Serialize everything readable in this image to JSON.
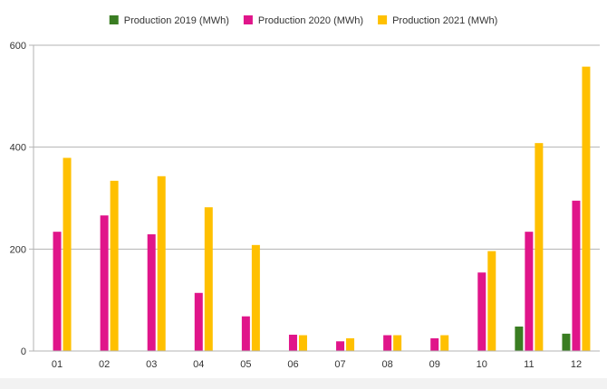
{
  "chart_data": {
    "type": "bar",
    "title": "",
    "xlabel": "",
    "ylabel": "",
    "categories": [
      "01",
      "02",
      "03",
      "04",
      "05",
      "06",
      "07",
      "08",
      "09",
      "10",
      "11",
      "12"
    ],
    "series": [
      {
        "name": "Production 2019 (MWh)",
        "color": "#3a7d22",
        "values": [
          0,
          0,
          0,
          0,
          0,
          0,
          0,
          0,
          0,
          0,
          48,
          34
        ]
      },
      {
        "name": "Production 2020 (MWh)",
        "color": "#e0158a",
        "values": [
          234,
          266,
          229,
          114,
          68,
          32,
          19,
          31,
          25,
          154,
          234,
          295
        ]
      },
      {
        "name": "Production 2021 (MWh)",
        "color": "#ffc000",
        "values": [
          379,
          334,
          343,
          282,
          208,
          31,
          25,
          31,
          31,
          196,
          408,
          558
        ]
      }
    ],
    "ylim": [
      0,
      600
    ],
    "yticks": [
      0,
      200,
      400,
      600
    ],
    "grid": true,
    "legend_position": "top-center"
  }
}
